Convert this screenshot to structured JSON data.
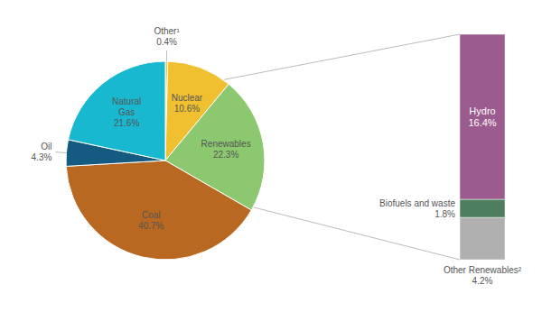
{
  "chart_data": [
    {
      "type": "pie",
      "categories": [
        "Other¹",
        "Nuclear",
        "Renewables",
        "Coal",
        "Oil",
        "Natural\nGas"
      ],
      "values": [
        0.4,
        10.6,
        22.3,
        40.7,
        4.3,
        21.6
      ],
      "value_labels": [
        "0.4%",
        "10.6%",
        "22.3%",
        "40.7%",
        "4.3%",
        "21.6%"
      ],
      "colors": [
        "#f0c030",
        "#f0c030",
        "#8cc870",
        "#b86820",
        "#155a80",
        "#18b8d0"
      ],
      "data_labels": true
    },
    {
      "type": "bar",
      "stacked": true,
      "categories": [
        null
      ],
      "series": [
        {
          "name": "Other Renewables²",
          "color": "#b0b0b0",
          "values": [
            4.2
          ],
          "value_labels": [
            "4.2%"
          ]
        },
        {
          "name": "Biofuels and waste",
          "color": "#4d7f5e",
          "values": [
            1.8
          ],
          "value_labels": [
            "1.8%"
          ]
        },
        {
          "name": "Hydro",
          "color": "#9b5b8e",
          "values": [
            16.4
          ],
          "value_labels": [
            "16.4%"
          ]
        }
      ],
      "ylim": [
        0,
        22.4
      ],
      "tick_labels": false,
      "data_labels": true
    }
  ]
}
